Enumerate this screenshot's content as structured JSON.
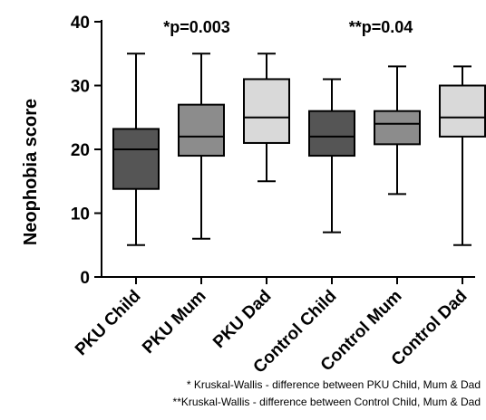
{
  "chart_data": {
    "type": "box",
    "ylabel": "Neophobia score",
    "ylim": [
      0,
      40
    ],
    "yticks": [
      0,
      10,
      20,
      30,
      40
    ],
    "categories": [
      "PKU Child",
      "PKU Mum",
      "PKU Dad",
      "Control Child",
      "Control Mum",
      "Control Dad"
    ],
    "boxes": [
      {
        "category": "PKU Child",
        "min": 5,
        "q1": 13.8,
        "median": 20,
        "q3": 23.2,
        "max": 35,
        "color": "#555555"
      },
      {
        "category": "PKU Mum",
        "min": 6,
        "q1": 19,
        "median": 22,
        "q3": 27,
        "max": 35,
        "color": "#8c8c8c"
      },
      {
        "category": "PKU Dad",
        "min": 15,
        "q1": 21,
        "median": 25,
        "q3": 31,
        "max": 35,
        "color": "#d9d9d9"
      },
      {
        "category": "Control Child",
        "min": 7,
        "q1": 19,
        "median": 22,
        "q3": 26,
        "max": 31,
        "color": "#555555"
      },
      {
        "category": "Control Mum",
        "min": 13,
        "q1": 20.8,
        "median": 24,
        "q3": 26,
        "max": 33,
        "color": "#8c8c8c"
      },
      {
        "category": "Control Dad",
        "min": 5,
        "q1": 22,
        "median": 25,
        "q3": 30,
        "max": 33,
        "color": "#d9d9d9"
      }
    ],
    "annotations": [
      {
        "text": "*p=0.003",
        "over": "PKU Mum"
      },
      {
        "text": "**p=0.04",
        "over": "Control Mum"
      }
    ],
    "footnotes": [
      "* Kruskal-Wallis - difference between PKU Child, Mum & Dad",
      "**Kruskal-Wallis - difference between Control Child, Mum & Dad"
    ]
  }
}
